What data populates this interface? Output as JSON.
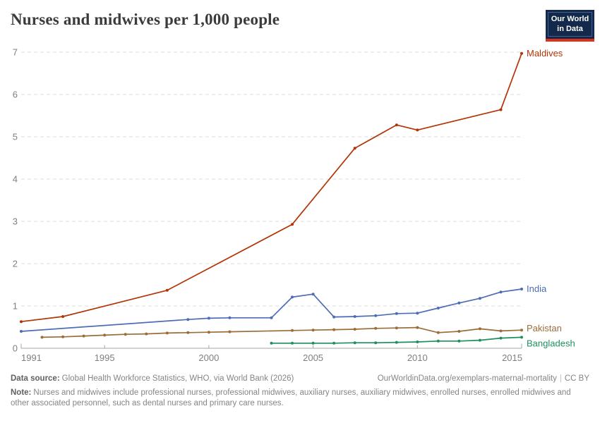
{
  "header": {
    "title": "Nurses and midwives per 1,000 people",
    "logo": {
      "line1": "Our World",
      "line2": "in Data",
      "bg_color": "#12294b",
      "bar_color": "#dc3018"
    }
  },
  "chart_data": {
    "type": "line",
    "title": "Nurses and midwives per 1,000 people",
    "xlabel": "",
    "ylabel": "",
    "xlim": [
      1991,
      2015
    ],
    "ylim": [
      0,
      7
    ],
    "x_ticks": [
      1991,
      1995,
      2000,
      2005,
      2010,
      2015
    ],
    "y_ticks": [
      0,
      1,
      2,
      3,
      4,
      5,
      6,
      7
    ],
    "grid": "horizontal-dashed",
    "legend_position": "line-end-labels",
    "colors": {
      "gridline": "#dedede",
      "axis": "#a5a5a5",
      "tick_text": "#7f7f7f"
    },
    "series": [
      {
        "name": "Maldives",
        "color": "#b13507",
        "points": [
          [
            1991,
            0.63
          ],
          [
            1993,
            0.75
          ],
          [
            1998,
            1.37
          ],
          [
            2004,
            2.93
          ],
          [
            2007,
            4.73
          ],
          [
            2009,
            5.28
          ],
          [
            2010,
            5.16
          ],
          [
            2014,
            5.64
          ],
          [
            2015,
            6.97
          ]
        ]
      },
      {
        "name": "India",
        "color": "#4c6db5",
        "points": [
          [
            1991,
            0.4
          ],
          [
            1999,
            0.68
          ],
          [
            2000,
            0.71
          ],
          [
            2001,
            0.72
          ],
          [
            2003,
            0.72
          ],
          [
            2004,
            1.21
          ],
          [
            2005,
            1.28
          ],
          [
            2006,
            0.74
          ],
          [
            2007,
            0.75
          ],
          [
            2008,
            0.77
          ],
          [
            2009,
            0.82
          ],
          [
            2010,
            0.83
          ],
          [
            2011,
            0.95
          ],
          [
            2012,
            1.07
          ],
          [
            2013,
            1.18
          ],
          [
            2014,
            1.33
          ],
          [
            2015,
            1.4
          ]
        ]
      },
      {
        "name": "Pakistan",
        "color": "#9a6d39",
        "points": [
          [
            1992,
            0.26
          ],
          [
            1993,
            0.27
          ],
          [
            1994,
            0.29
          ],
          [
            1995,
            0.31
          ],
          [
            1996,
            0.33
          ],
          [
            1997,
            0.34
          ],
          [
            1998,
            0.36
          ],
          [
            1999,
            0.37
          ],
          [
            2000,
            0.38
          ],
          [
            2001,
            0.39
          ],
          [
            2004,
            0.42
          ],
          [
            2005,
            0.43
          ],
          [
            2006,
            0.44
          ],
          [
            2007,
            0.45
          ],
          [
            2008,
            0.47
          ],
          [
            2009,
            0.48
          ],
          [
            2010,
            0.49
          ],
          [
            2011,
            0.37
          ],
          [
            2012,
            0.4
          ],
          [
            2013,
            0.46
          ],
          [
            2014,
            0.41
          ],
          [
            2015,
            0.43
          ]
        ]
      },
      {
        "name": "Bangladesh",
        "color": "#1f8f5f",
        "points": [
          [
            2003,
            0.12
          ],
          [
            2004,
            0.12
          ],
          [
            2005,
            0.12
          ],
          [
            2006,
            0.12
          ],
          [
            2007,
            0.13
          ],
          [
            2008,
            0.13
          ],
          [
            2009,
            0.14
          ],
          [
            2010,
            0.15
          ],
          [
            2011,
            0.17
          ],
          [
            2012,
            0.17
          ],
          [
            2013,
            0.19
          ],
          [
            2014,
            0.24
          ],
          [
            2015,
            0.26
          ]
        ]
      }
    ]
  },
  "footer": {
    "data_source_label": "Data source:",
    "data_source": "Global Health Workforce Statistics, WHO, via World Bank (2026)",
    "origin_url": "OurWorldinData.org/exemplars-maternal-mortality",
    "separator": "|",
    "license": "CC BY",
    "note_label": "Note:",
    "note": "Nurses and midwives include professional nurses, professional midwives, auxiliary nurses, auxiliary midwives, enrolled nurses, enrolled midwives and other associated personnel, such as dental nurses and primary care nurses."
  }
}
